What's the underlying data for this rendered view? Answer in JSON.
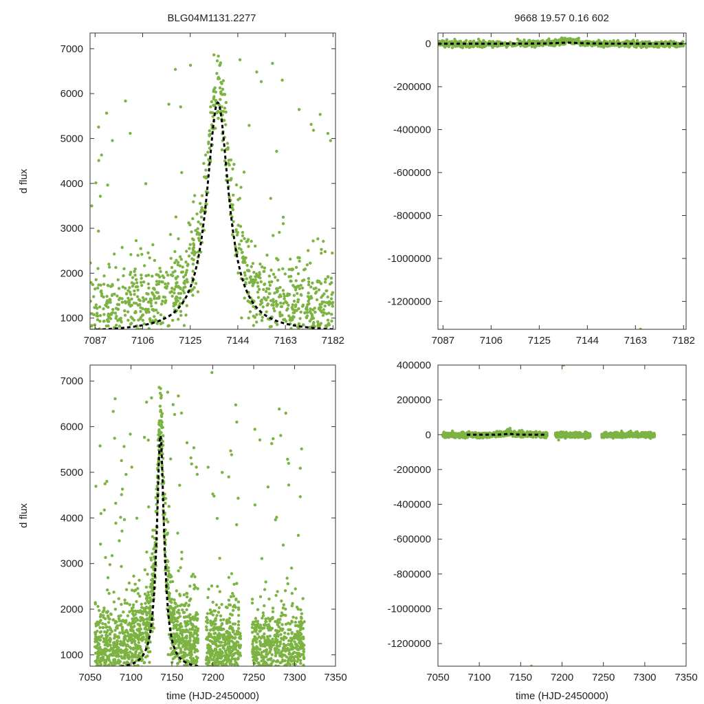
{
  "figure": {
    "title_left": "BLG04M1131.2277",
    "title_right": "9668   19.57   0.16   602",
    "ylabel": "d flux",
    "xlabel": "time (HJD-2450000)",
    "colors": {
      "points": "#7cb342",
      "model": "#000000",
      "axes": "#333333"
    }
  },
  "chart_data": [
    {
      "id": "top-left",
      "type": "scatter",
      "xlim": [
        7085,
        7183
      ],
      "ylim": [
        750,
        7350
      ],
      "xticks": [
        7087,
        7106,
        7125,
        7144,
        7163,
        7182
      ],
      "yticks": [
        1000,
        2000,
        3000,
        4000,
        5000,
        6000,
        7000
      ],
      "ylabel": "d flux",
      "xlabel": "",
      "model": {
        "peak_time": 7136,
        "peak_flux": 5800,
        "baseline_flux": 680,
        "width_days": 5.4
      }
    },
    {
      "id": "top-right",
      "type": "scatter",
      "xlim": [
        7085,
        7183
      ],
      "ylim": [
        -1330000,
        50000
      ],
      "xticks": [
        7087,
        7106,
        7125,
        7144,
        7163,
        7182
      ],
      "yticks": [
        0,
        -200000,
        -400000,
        -600000,
        -800000,
        -1000000,
        -1200000
      ],
      "ylabel": "",
      "xlabel": "",
      "model": {
        "peak_time": 7136,
        "peak_flux": 5800,
        "baseline_flux": 680,
        "width_days": 5.4
      }
    },
    {
      "id": "bottom-left",
      "type": "scatter",
      "xlim": [
        7050,
        7350
      ],
      "ylim": [
        750,
        7350
      ],
      "xticks": [
        7050,
        7100,
        7150,
        7200,
        7250,
        7300,
        7350
      ],
      "yticks": [
        1000,
        2000,
        3000,
        4000,
        5000,
        6000,
        7000
      ],
      "ylabel": "d flux",
      "xlabel": "time (HJD-2450000)",
      "model": {
        "peak_time": 7136,
        "peak_flux": 5800,
        "baseline_flux": 680,
        "width_days": 5.4
      }
    },
    {
      "id": "bottom-right",
      "type": "scatter",
      "xlim": [
        7050,
        7350
      ],
      "ylim": [
        -1330000,
        400000
      ],
      "xticks": [
        7050,
        7100,
        7150,
        7200,
        7250,
        7300,
        7350
      ],
      "yticks": [
        400000,
        200000,
        0,
        -200000,
        -400000,
        -600000,
        -800000,
        -1000000,
        -1200000
      ],
      "ylabel": "",
      "xlabel": "time (HJD-2450000)",
      "model": {
        "peak_time": 7136,
        "peak_flux": 5800,
        "baseline_flux": 680,
        "width_days": 5.4
      }
    }
  ]
}
